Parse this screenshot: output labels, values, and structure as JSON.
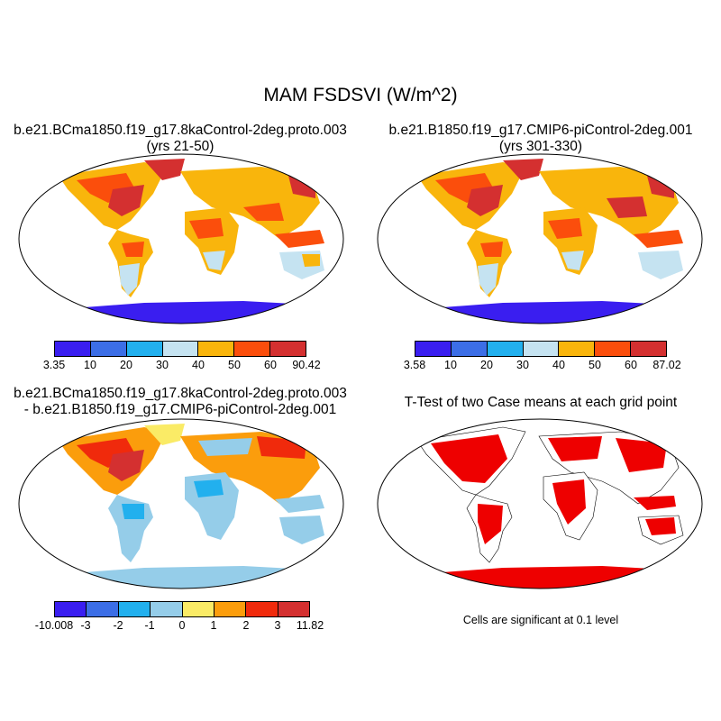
{
  "title": "MAM FSDSVI (W/m^2)",
  "panels": [
    {
      "title_line1": "b.e21.BCma1850.f19_g17.8kaControl-2deg.proto.003",
      "title_line2": "(yrs 21-50)",
      "colorbar": {
        "labels": [
          "3.35",
          "10",
          "20",
          "30",
          "40",
          "50",
          "60",
          "90.42"
        ],
        "colors": [
          "#3a1ef0",
          "#3c6ee6",
          "#22b0ee",
          "#c5e3f1",
          "#f9b50c",
          "#fb4e0c",
          "#d43030"
        ]
      }
    },
    {
      "title_line1": "b.e21.B1850.f19_g17.CMIP6-piControl-2deg.001",
      "title_line2": "(yrs 301-330)",
      "colorbar": {
        "labels": [
          "3.58",
          "10",
          "20",
          "30",
          "40",
          "50",
          "60",
          "87.02"
        ],
        "colors": [
          "#3a1ef0",
          "#3c6ee6",
          "#22b0ee",
          "#c5e3f1",
          "#f9b50c",
          "#fb4e0c",
          "#d43030"
        ]
      }
    },
    {
      "title_line1": "b.e21.BCma1850.f19_g17.8kaControl-2deg.proto.003",
      "title_line2": "- b.e21.B1850.f19_g17.CMIP6-piControl-2deg.001",
      "colorbar": {
        "labels": [
          "-10.008",
          "-3",
          "-2",
          "-1",
          "0",
          "1",
          "2",
          "3",
          "11.82"
        ],
        "colors": [
          "#3a1ef0",
          "#3c6ee6",
          "#22b0ee",
          "#95cde9",
          "#faeb66",
          "#fb9d0c",
          "#f02a0c",
          "#d43030"
        ]
      }
    },
    {
      "title_line1": "T-Test of two Case means at each grid point",
      "note": "Cells are significant at 0.1 level",
      "colors": {
        "significant": "#ee0000"
      }
    }
  ]
}
